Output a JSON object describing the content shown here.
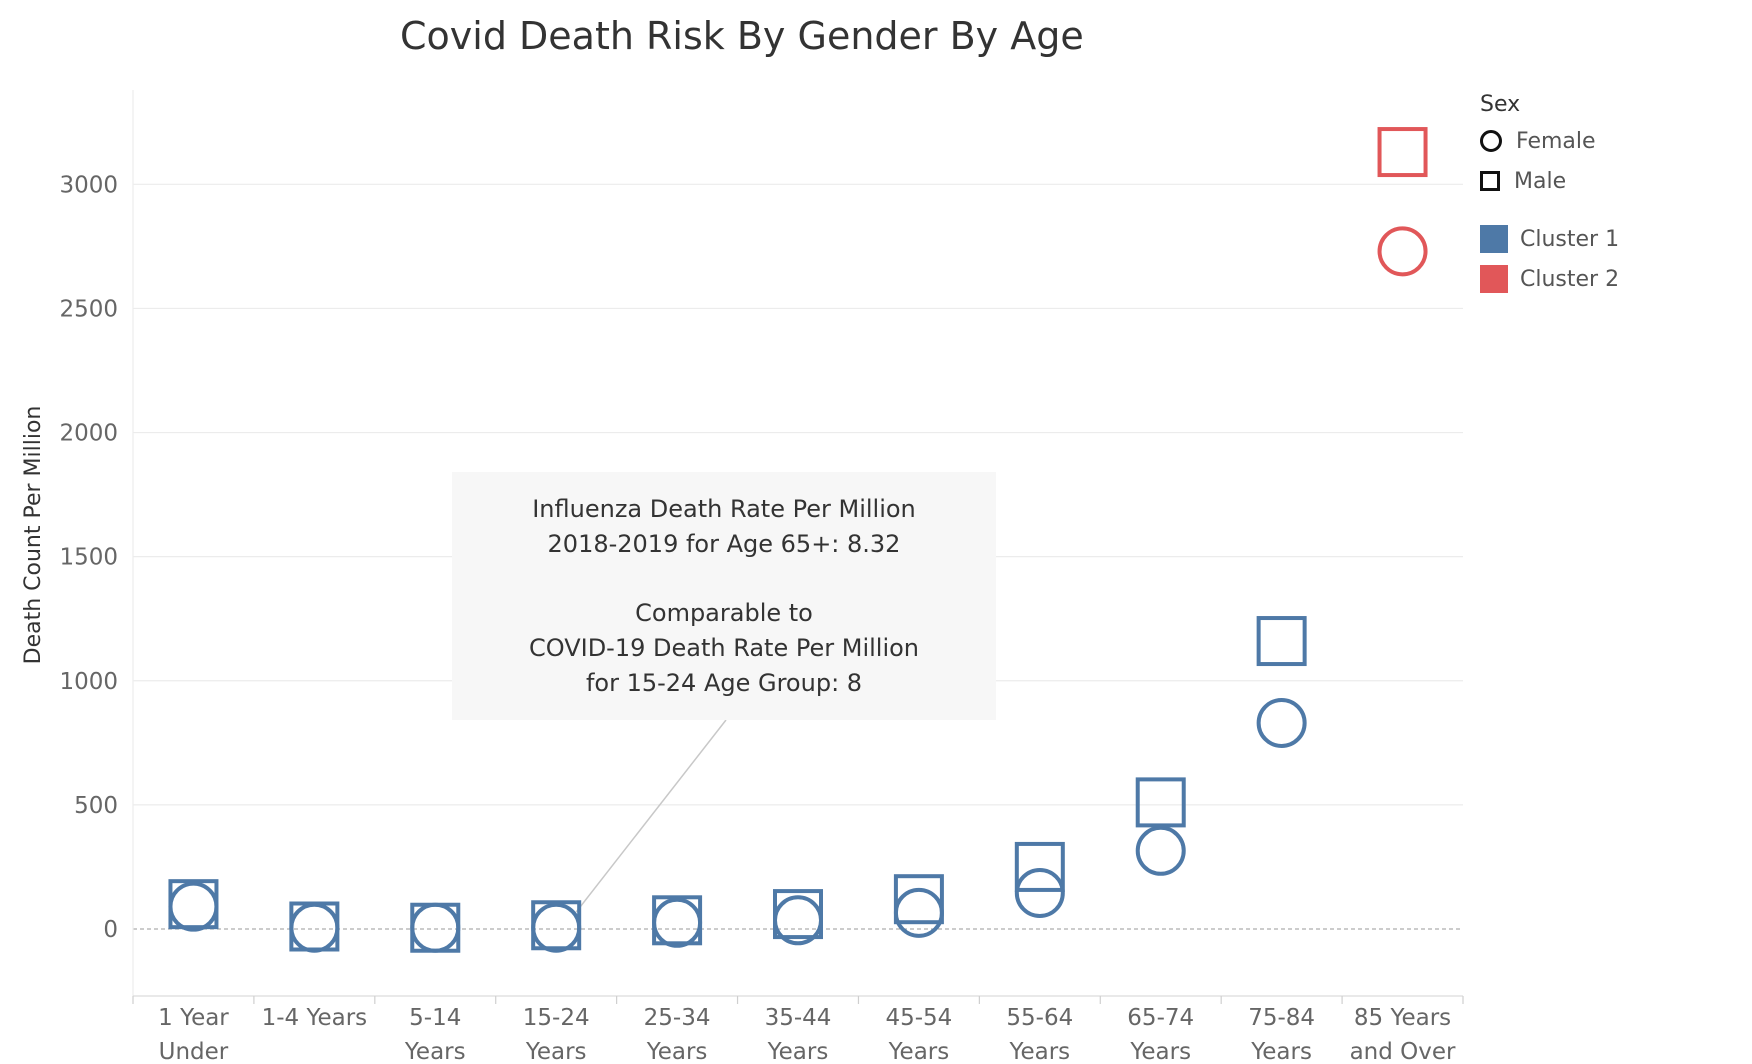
{
  "chart_data": {
    "type": "scatter",
    "title": "Covid Death Risk By Gender By Age",
    "xlabel": "",
    "ylabel": "Death Count Per Million",
    "ylim": [
      -270,
      3380
    ],
    "yticks": [
      0,
      500,
      1000,
      1500,
      2000,
      2500,
      3000
    ],
    "categories": [
      [
        "1 Year",
        "Under"
      ],
      [
        "1-4 Years",
        ""
      ],
      [
        "5-14",
        "Years"
      ],
      [
        "15-24",
        "Years"
      ],
      [
        "25-34",
        "Years"
      ],
      [
        "35-44",
        "Years"
      ],
      [
        "45-54",
        "Years"
      ],
      [
        "55-64",
        "Years"
      ],
      [
        "65-74",
        "Years"
      ],
      [
        "75-84",
        "Years"
      ],
      [
        "85 Years",
        "and Over"
      ]
    ],
    "grid": true,
    "series": [
      {
        "name": "Female",
        "shape": "circle",
        "values": [
          90,
          5,
          5,
          5,
          25,
          35,
          65,
          145,
          315,
          830,
          2730
        ],
        "cluster": [
          1,
          1,
          1,
          1,
          1,
          1,
          1,
          1,
          1,
          1,
          2
        ]
      },
      {
        "name": "Male",
        "shape": "square",
        "values": [
          100,
          10,
          5,
          15,
          35,
          60,
          120,
          250,
          510,
          1160,
          3130
        ],
        "cluster": [
          1,
          1,
          1,
          1,
          1,
          1,
          1,
          1,
          1,
          1,
          2
        ]
      }
    ],
    "legend": {
      "title": "Sex",
      "shapes": [
        {
          "label": "Female",
          "shape": "circle"
        },
        {
          "label": "Male",
          "shape": "square"
        }
      ],
      "colors": [
        {
          "label": "Cluster 1",
          "color": "#4e79a7"
        },
        {
          "label": "Cluster 2",
          "color": "#e15759"
        }
      ],
      "position": "top-right"
    },
    "annotation": {
      "lines": [
        "Influenza Death Rate Per Million",
        "2018-2019 for Age 65+: 8.32",
        "",
        "Comparable to",
        "COVID-19 Death Rate Per Million",
        "for 15-24 Age Group: 8"
      ],
      "points_to_category": 3,
      "points_to_value": 8
    }
  }
}
